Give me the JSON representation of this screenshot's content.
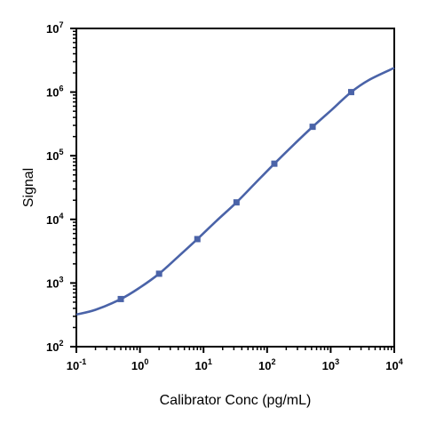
{
  "chart_data": {
    "type": "line",
    "title": "",
    "xlabel": "Calibrator Conc (pg/mL)",
    "ylabel": "Signal",
    "x_scale": "log",
    "y_scale": "log",
    "xlim": [
      0.1,
      10000
    ],
    "ylim": [
      100,
      10000000
    ],
    "grid": false,
    "legend": "none",
    "x_ticks": [
      {
        "base": "10",
        "exp": "-1"
      },
      {
        "base": "10",
        "exp": "0"
      },
      {
        "base": "10",
        "exp": "1"
      },
      {
        "base": "10",
        "exp": "2"
      },
      {
        "base": "10",
        "exp": "3"
      },
      {
        "base": "10",
        "exp": "4"
      }
    ],
    "y_ticks": [
      {
        "base": "10",
        "exp": "2"
      },
      {
        "base": "10",
        "exp": "3"
      },
      {
        "base": "10",
        "exp": "4"
      },
      {
        "base": "10",
        "exp": "5"
      },
      {
        "base": "10",
        "exp": "6"
      },
      {
        "base": "10",
        "exp": "7"
      }
    ],
    "series": [
      {
        "color": "#4a63a8",
        "points": [
          {
            "x": 0.5,
            "y": 560
          },
          {
            "x": 2,
            "y": 1400
          },
          {
            "x": 8,
            "y": 4900
          },
          {
            "x": 33,
            "y": 18500
          },
          {
            "x": 130,
            "y": 75000
          },
          {
            "x": 520,
            "y": 285000
          },
          {
            "x": 2100,
            "y": 1000000
          }
        ],
        "curve": [
          {
            "x": 0.1,
            "y": 320
          },
          {
            "x": 0.2,
            "y": 380
          },
          {
            "x": 0.5,
            "y": 560
          },
          {
            "x": 1,
            "y": 850
          },
          {
            "x": 2,
            "y": 1400
          },
          {
            "x": 4,
            "y": 2600
          },
          {
            "x": 8,
            "y": 4900
          },
          {
            "x": 16,
            "y": 9500
          },
          {
            "x": 33,
            "y": 18500
          },
          {
            "x": 65,
            "y": 37000
          },
          {
            "x": 130,
            "y": 75000
          },
          {
            "x": 260,
            "y": 148000
          },
          {
            "x": 520,
            "y": 285000
          },
          {
            "x": 1000,
            "y": 510000
          },
          {
            "x": 2100,
            "y": 1000000
          },
          {
            "x": 4000,
            "y": 1550000
          },
          {
            "x": 10000,
            "y": 2400000
          }
        ]
      }
    ]
  }
}
